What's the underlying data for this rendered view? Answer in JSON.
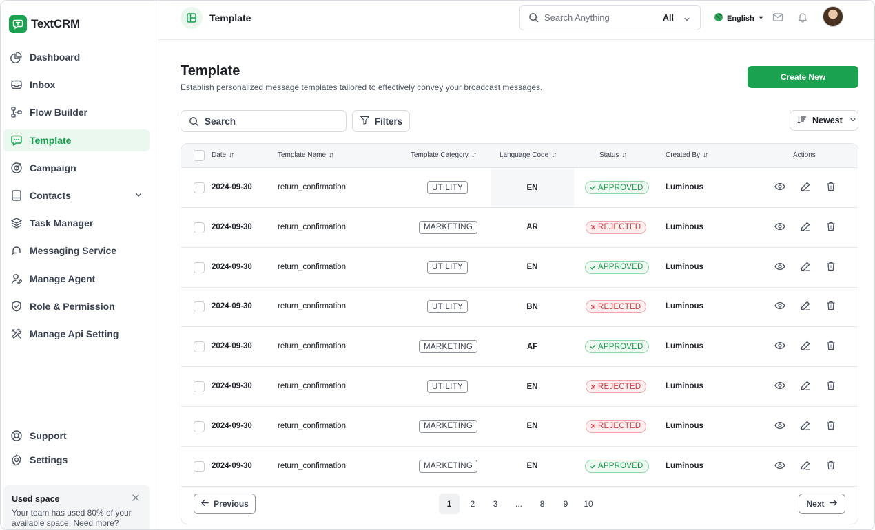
{
  "brand": {
    "name": "TextCRM",
    "accent": "#1aa251"
  },
  "sidebar": {
    "items": [
      {
        "label": "Dashboard",
        "icon": "pie-chart-icon"
      },
      {
        "label": "Inbox",
        "icon": "inbox-icon"
      },
      {
        "label": "Flow Builder",
        "icon": "flow-icon"
      },
      {
        "label": "Template",
        "icon": "chat-template-icon",
        "active": true
      },
      {
        "label": "Campaign",
        "icon": "campaign-icon"
      },
      {
        "label": "Contacts",
        "icon": "contacts-icon",
        "expandable": true
      },
      {
        "label": "Task Manager",
        "icon": "layers-icon"
      },
      {
        "label": "Messaging Service",
        "icon": "message-service-icon"
      },
      {
        "label": "Manage Agent",
        "icon": "agent-icon"
      },
      {
        "label": "Role & Permission",
        "icon": "shield-icon"
      },
      {
        "label": "Manage Api Setting",
        "icon": "tools-icon"
      }
    ],
    "bottom": [
      {
        "label": "Support",
        "icon": "support-icon"
      },
      {
        "label": "Settings",
        "icon": "gear-icon"
      }
    ],
    "used_space": {
      "title": "Used space",
      "text": "Your team has used 80% of your available space. Need more?"
    }
  },
  "topbar": {
    "title": "Template",
    "search_placeholder": "Search Anything",
    "search_scope": "All",
    "language": "English"
  },
  "page": {
    "title": "Template",
    "subtitle": "Establish personalized message templates tailored to effectively convey your broadcast messages.",
    "create_label": "Create New",
    "search_placeholder": "Search",
    "filters_label": "Filters",
    "sort_label": "Newest"
  },
  "table": {
    "columns": [
      "Date",
      "Template Name",
      "Template Category",
      "Language Code",
      "Status",
      "Created By",
      "Actions"
    ],
    "rows": [
      {
        "date": "2024-09-30",
        "name": "return_confirmation",
        "category": "UTILITY",
        "lang": "EN",
        "status": "APPROVED",
        "created_by": "Luminous"
      },
      {
        "date": "2024-09-30",
        "name": "return_confirmation",
        "category": "MARKETING",
        "lang": "AR",
        "status": "REJECTED",
        "created_by": "Luminous"
      },
      {
        "date": "2024-09-30",
        "name": "return_confirmation",
        "category": "UTILITY",
        "lang": "EN",
        "status": "APPROVED",
        "created_by": "Luminous"
      },
      {
        "date": "2024-09-30",
        "name": "return_confirmation",
        "category": "UTILITY",
        "lang": "BN",
        "status": "REJECTED",
        "created_by": "Luminous"
      },
      {
        "date": "2024-09-30",
        "name": "return_confirmation",
        "category": "MARKETING",
        "lang": "AF",
        "status": "APPROVED",
        "created_by": "Luminous"
      },
      {
        "date": "2024-09-30",
        "name": "return_confirmation",
        "category": "UTILITY",
        "lang": "EN",
        "status": "REJECTED",
        "created_by": "Luminous"
      },
      {
        "date": "2024-09-30",
        "name": "return_confirmation",
        "category": "MARKETING",
        "lang": "EN",
        "status": "REJECTED",
        "created_by": "Luminous"
      },
      {
        "date": "2024-09-30",
        "name": "return_confirmation",
        "category": "MARKETING",
        "lang": "EN",
        "status": "APPROVED",
        "created_by": "Luminous"
      }
    ]
  },
  "pagination": {
    "previous_label": "Previous",
    "next_label": "Next",
    "pages": [
      "1",
      "2",
      "3",
      "...",
      "8",
      "9",
      "10"
    ],
    "current": "1"
  },
  "colors": {
    "approved": "#1a9a4d",
    "rejected": "#d23a44"
  }
}
